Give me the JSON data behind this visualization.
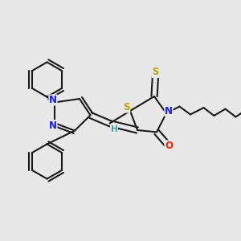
{
  "background_color": "#e8e8e8",
  "figsize": [
    3.0,
    3.0
  ],
  "dpi": 100,
  "bond_color": "#1a1a1a",
  "bond_width": 1.5,
  "atom_colors": {
    "N": "#1a1aff",
    "O": "#ff2000",
    "S_thio": "#c8a000",
    "H": "#40a0a0"
  }
}
